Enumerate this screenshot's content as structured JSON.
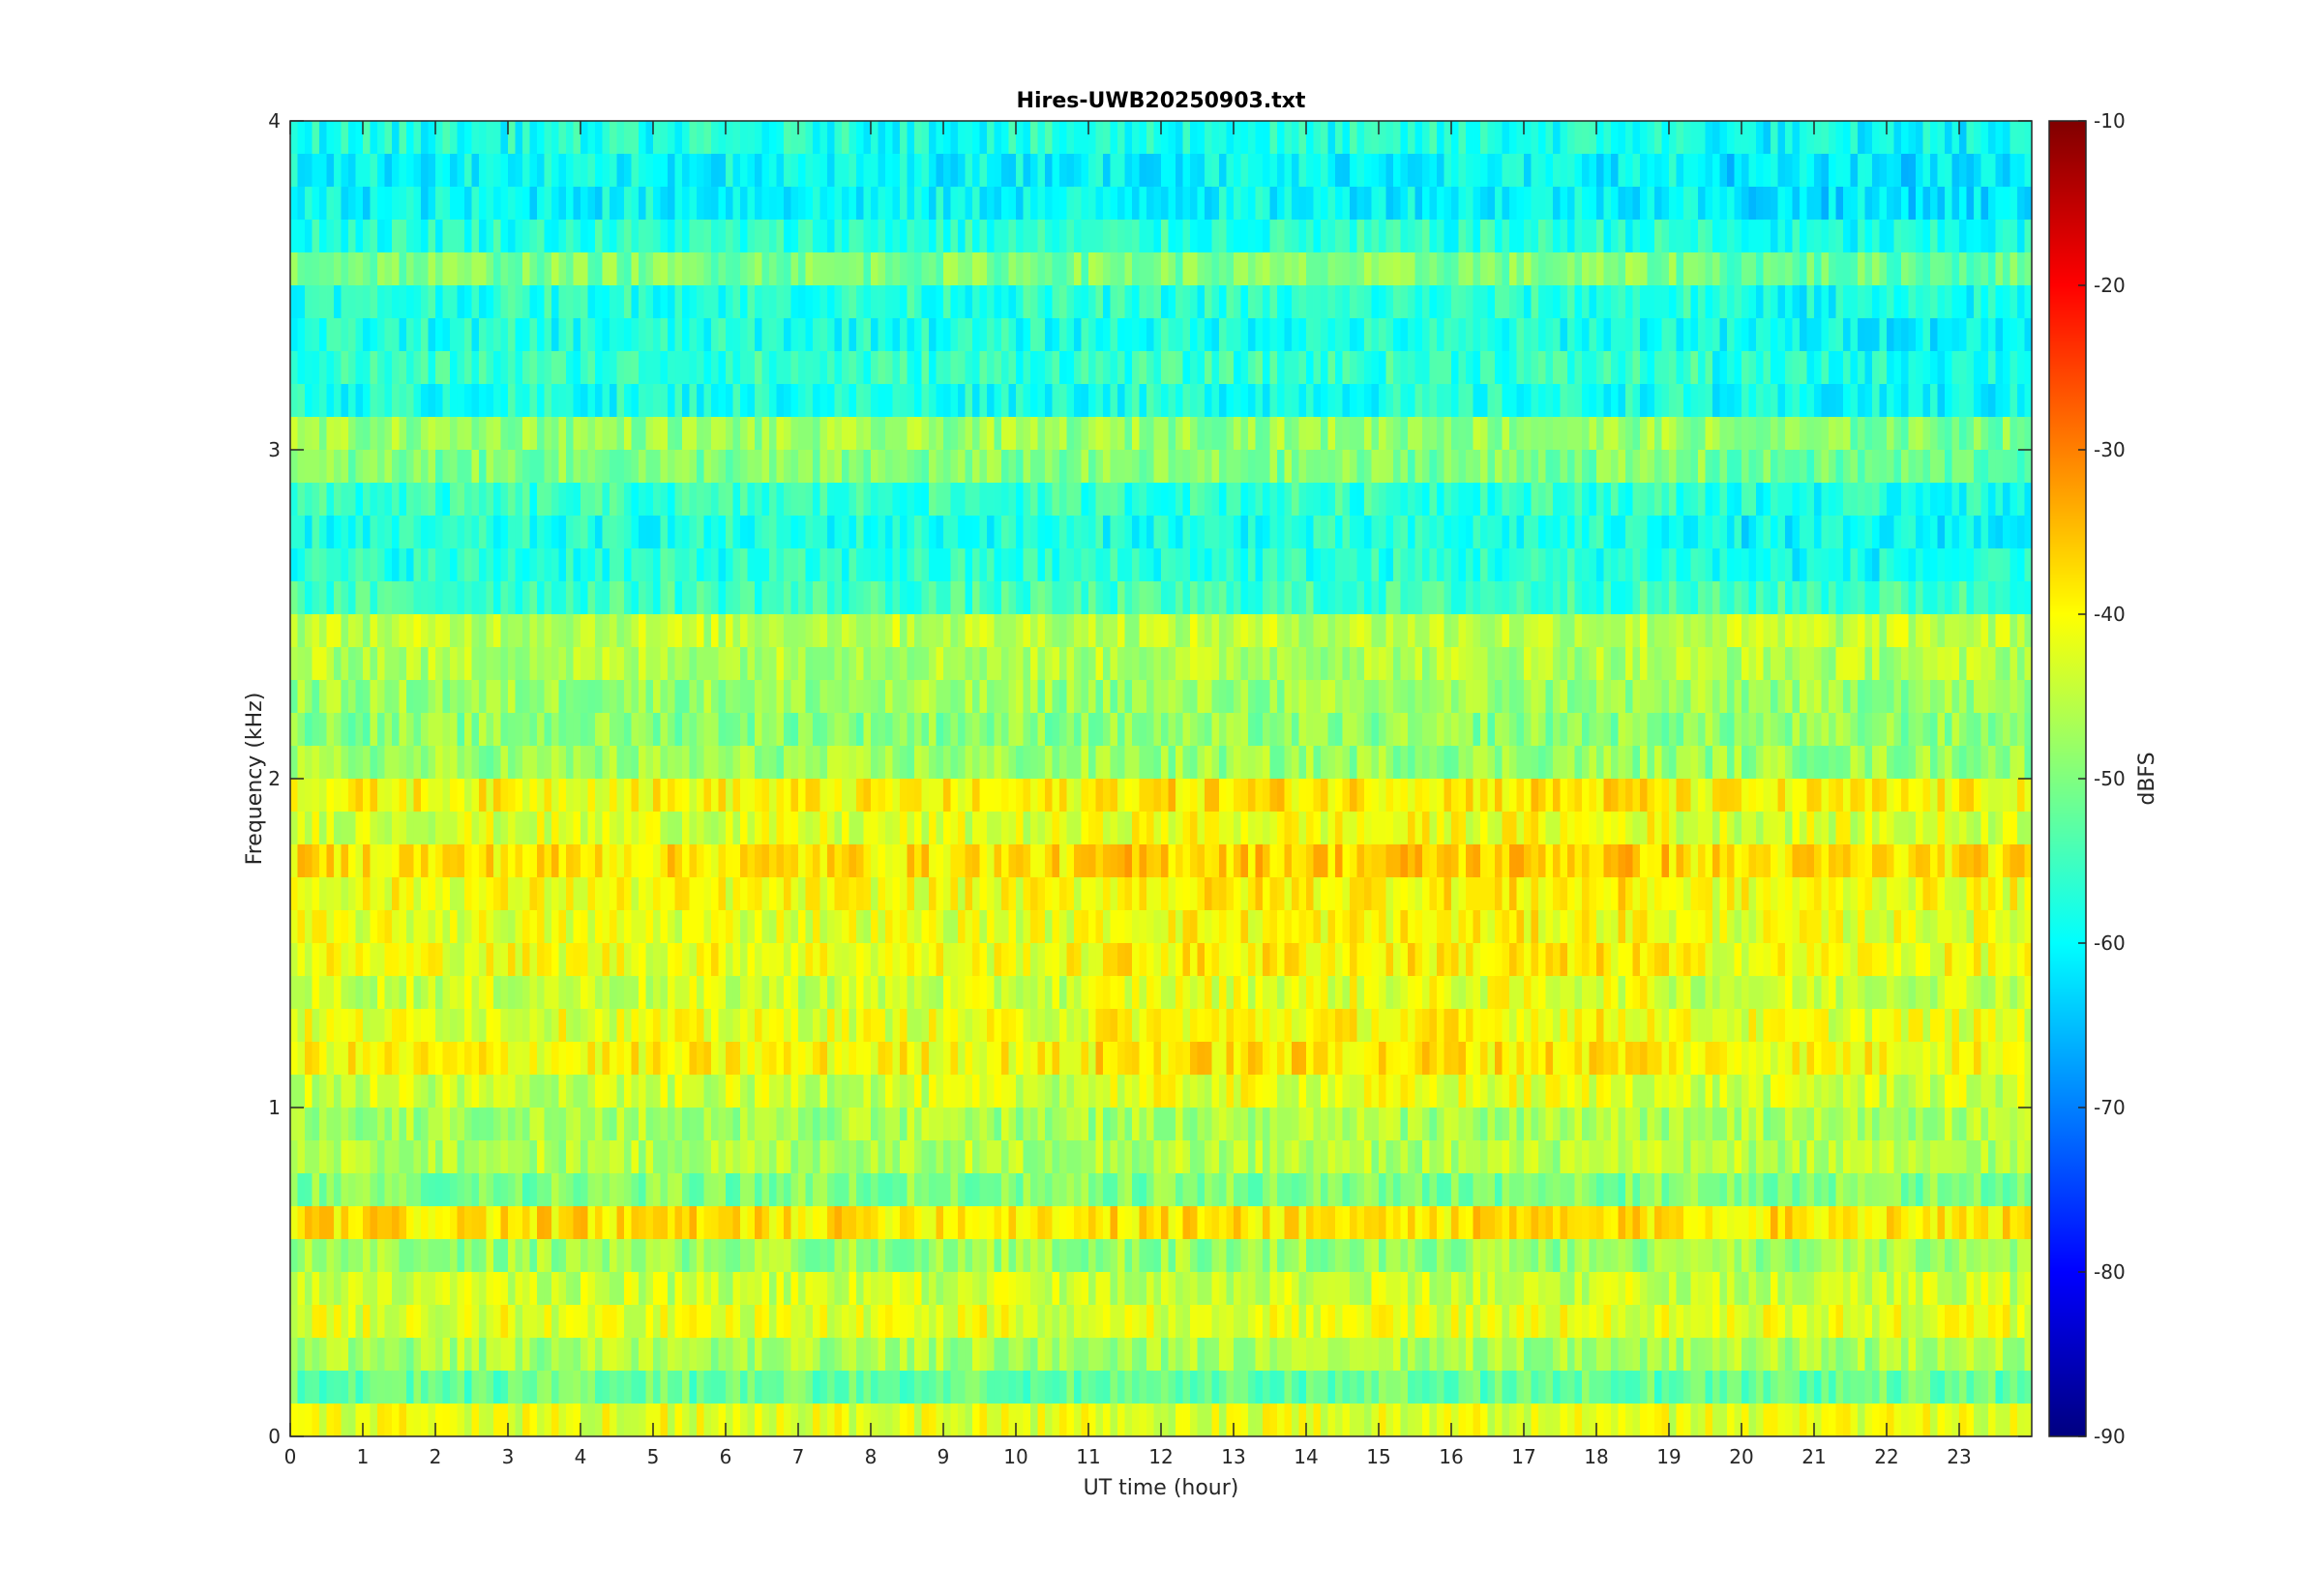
{
  "chart_data": {
    "type": "heatmap",
    "title": "Hires-UWB20250903.txt",
    "xlabel": "UT time (hour)",
    "ylabel": "Frequency (kHz)",
    "xlim": [
      0,
      24
    ],
    "ylim": [
      0,
      4
    ],
    "x_ticks": [
      0,
      1,
      2,
      3,
      4,
      5,
      6,
      7,
      8,
      9,
      10,
      11,
      12,
      13,
      14,
      15,
      16,
      17,
      18,
      19,
      20,
      21,
      22,
      23
    ],
    "y_ticks": [
      0,
      1,
      2,
      3,
      4
    ],
    "colormap": "jet",
    "colorbar": {
      "label": "dBFS",
      "clim": [
        -90,
        -10
      ],
      "ticks": [
        -90,
        -80,
        -70,
        -60,
        -50,
        -40,
        -30,
        -20,
        -10
      ]
    },
    "frequency_bins_khz": [
      0.05,
      0.15,
      0.25,
      0.35,
      0.45,
      0.55,
      0.65,
      0.75,
      0.85,
      0.95,
      1.05,
      1.15,
      1.25,
      1.35,
      1.45,
      1.55,
      1.65,
      1.75,
      1.85,
      1.95,
      2.05,
      2.15,
      2.25,
      2.35,
      2.45,
      2.55,
      2.65,
      2.75,
      2.85,
      2.95,
      3.05,
      3.15,
      3.25,
      3.35,
      3.45,
      3.55,
      3.65,
      3.75,
      3.85,
      3.95
    ],
    "band_level_dbfs": [
      -42,
      -52,
      -47,
      -42,
      -44,
      -48,
      -38,
      -50,
      -46,
      -47,
      -44,
      -40,
      -42,
      -44,
      -41,
      -42,
      -41,
      -38,
      -43,
      -40,
      -48,
      -49,
      -48,
      -46,
      -45,
      -55,
      -57,
      -58,
      -56,
      -50,
      -48,
      -58,
      -56,
      -58,
      -57,
      -50,
      -57,
      -60,
      -60,
      -58
    ],
    "colors": {
      "colormap_stops": [
        "#000080",
        "#0000ff",
        "#00ffff",
        "#ffff00",
        "#ff0000",
        "#800000"
      ],
      "axis": "#262626"
    }
  }
}
